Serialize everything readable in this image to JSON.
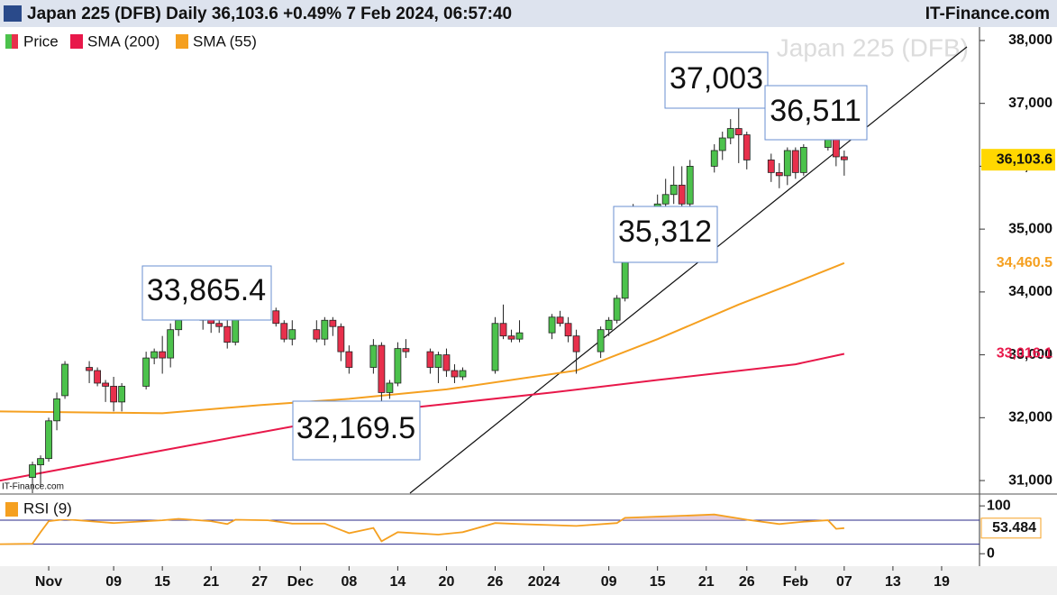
{
  "chart_data": {
    "type": "candlestick",
    "title": "Japan 225 (DFB) Daily 36,103.6 +0.49% 7 Feb 2024, 06:57:40",
    "source": "IT-Finance.com",
    "watermark": "Japan 225 (DFB)",
    "footer_source": "IT-Finance.com",
    "up_color": "#4cc24c",
    "down_color": "#e8304c",
    "legend": [
      "Price",
      "SMA (200)",
      "SMA (55)"
    ],
    "xlim": [
      "2023-10-26",
      "2024-02-23"
    ],
    "xticks": [
      {
        "value": "2023-11-01",
        "label": "Nov"
      },
      {
        "value": "2023-11-09",
        "label": "09"
      },
      {
        "value": "2023-11-15",
        "label": "15"
      },
      {
        "value": "2023-11-21",
        "label": "21"
      },
      {
        "value": "2023-11-27",
        "label": "27"
      },
      {
        "value": "2023-12-02",
        "label": "Dec"
      },
      {
        "value": "2023-12-08",
        "label": "08"
      },
      {
        "value": "2023-12-14",
        "label": "14"
      },
      {
        "value": "2023-12-20",
        "label": "20"
      },
      {
        "value": "2023-12-26",
        "label": "26"
      },
      {
        "value": "2024-01-01",
        "label": "2024"
      },
      {
        "value": "2024-01-09",
        "label": "09"
      },
      {
        "value": "2024-01-15",
        "label": "15"
      },
      {
        "value": "2024-01-21",
        "label": "21"
      },
      {
        "value": "2024-01-26",
        "label": "26"
      },
      {
        "value": "2024-02-01",
        "label": "Feb"
      },
      {
        "value": "2024-02-07",
        "label": "07"
      },
      {
        "value": "2024-02-13",
        "label": "13"
      },
      {
        "value": "2024-02-19",
        "label": "19"
      }
    ],
    "ylim": [
      30800,
      38200
    ],
    "yticks": [
      {
        "value": 31000,
        "label": "31,000"
      },
      {
        "value": 32000,
        "label": "32,000"
      },
      {
        "value": 33000,
        "label": "33,000"
      },
      {
        "value": 34000,
        "label": "34,000"
      },
      {
        "value": 35000,
        "label": "35,000"
      },
      {
        "value": 36000,
        "label": "36,000"
      },
      {
        "value": 37000,
        "label": "37,000"
      },
      {
        "value": 38000,
        "label": "38,000"
      }
    ],
    "candles": [
      [
        "2023-10-30",
        31050,
        31300,
        30800,
        31250
      ],
      [
        "2023-10-31",
        31250,
        31400,
        30900,
        31350
      ],
      [
        "2023-11-01",
        31350,
        32000,
        31300,
        31950
      ],
      [
        "2023-11-02",
        31950,
        32400,
        31800,
        32300
      ],
      [
        "2023-11-03",
        32350,
        32900,
        32300,
        32850
      ],
      [
        "2023-11-06",
        32800,
        32900,
        32550,
        32750
      ],
      [
        "2023-11-07",
        32750,
        32800,
        32500,
        32550
      ],
      [
        "2023-11-08",
        32550,
        32600,
        32250,
        32500
      ],
      [
        "2023-11-09",
        32500,
        32650,
        32100,
        32250
      ],
      [
        "2023-11-10",
        32250,
        32550,
        32100,
        32500
      ],
      [
        "2023-11-13",
        32500,
        33050,
        32450,
        32950
      ],
      [
        "2023-11-14",
        32950,
        33100,
        32850,
        33050
      ],
      [
        "2023-11-15",
        33050,
        33300,
        32700,
        32950
      ],
      [
        "2023-11-16",
        32950,
        33500,
        32800,
        33400
      ],
      [
        "2023-11-17",
        33400,
        33650,
        33300,
        33550
      ],
      [
        "2023-11-20",
        33550,
        33700,
        33400,
        33600
      ],
      [
        "2023-11-21",
        33600,
        33700,
        33350,
        33500
      ],
      [
        "2023-11-22",
        33500,
        33750,
        33350,
        33450
      ],
      [
        "2023-11-23",
        33450,
        33600,
        33100,
        33200
      ],
      [
        "2023-11-24",
        33200,
        33750,
        33150,
        33700
      ],
      [
        "2023-11-27",
        33700,
        33865.4,
        33650,
        33750
      ],
      [
        "2023-11-28",
        33750,
        33800,
        33600,
        33700
      ],
      [
        "2023-11-29",
        33700,
        33750,
        33450,
        33500
      ],
      [
        "2023-11-30",
        33500,
        33550,
        33200,
        33250
      ],
      [
        "2023-12-01",
        33250,
        33550,
        33150,
        33400
      ],
      [
        "2023-12-04",
        33400,
        33550,
        33200,
        33250
      ],
      [
        "2023-12-05",
        33250,
        33600,
        33150,
        33550
      ],
      [
        "2023-12-06",
        33550,
        33600,
        33300,
        33450
      ],
      [
        "2023-12-07",
        33450,
        33500,
        32900,
        33050
      ],
      [
        "2023-12-08",
        33050,
        33150,
        32700,
        32800
      ],
      [
        "2023-12-11",
        32800,
        33250,
        32700,
        33150
      ],
      [
        "2023-12-12",
        33150,
        33200,
        32169.5,
        32400
      ],
      [
        "2023-12-13",
        32400,
        32600,
        32300,
        32550
      ],
      [
        "2023-12-14",
        32550,
        33200,
        32500,
        33100
      ],
      [
        "2023-12-15",
        33100,
        33250,
        32950,
        33050
      ],
      [
        "2023-12-18",
        33050,
        33100,
        32700,
        32800
      ],
      [
        "2023-12-19",
        32800,
        33050,
        32550,
        33000
      ],
      [
        "2023-12-20",
        33000,
        33100,
        32650,
        32750
      ],
      [
        "2023-12-21",
        32750,
        32850,
        32550,
        32650
      ],
      [
        "2023-12-22",
        32650,
        32800,
        32600,
        32750
      ],
      [
        "2023-12-26",
        32750,
        33600,
        32700,
        33500
      ],
      [
        "2023-12-27",
        33500,
        33800,
        33250,
        33300
      ],
      [
        "2023-12-28",
        33300,
        33400,
        33200,
        33250
      ],
      [
        "2023-12-29",
        33250,
        33550,
        33200,
        33350
      ],
      [
        "2024-01-02",
        33350,
        33650,
        33250,
        33600
      ],
      [
        "2024-01-03",
        33600,
        33700,
        33450,
        33500
      ],
      [
        "2024-01-04",
        33500,
        33600,
        33200,
        33300
      ],
      [
        "2024-01-05",
        33300,
        33400,
        32700,
        33050
      ],
      [
        "2024-01-08",
        33050,
        33450,
        32950,
        33400
      ],
      [
        "2024-01-09",
        33400,
        33600,
        33300,
        33550
      ],
      [
        "2024-01-10",
        33550,
        33950,
        33500,
        33900
      ],
      [
        "2024-01-11",
        33900,
        35050,
        33850,
        34950
      ],
      [
        "2024-01-12",
        34950,
        35400,
        34900,
        35300
      ],
      [
        "2024-01-15",
        35300,
        35550,
        35150,
        35400
      ],
      [
        "2024-01-16",
        35400,
        35800,
        35350,
        35550
      ],
      [
        "2024-01-17",
        35550,
        36000,
        35400,
        35700
      ],
      [
        "2024-01-18",
        35700,
        36000,
        35312,
        35400
      ],
      [
        "2024-01-19",
        35400,
        36100,
        35300,
        36000
      ],
      [
        "2024-01-22",
        36000,
        36350,
        35900,
        36250
      ],
      [
        "2024-01-23",
        36250,
        36550,
        36100,
        36450
      ],
      [
        "2024-01-24",
        36450,
        36750,
        36350,
        36600
      ],
      [
        "2024-01-25",
        36600,
        37003,
        36050,
        36500
      ],
      [
        "2024-01-26",
        36500,
        36550,
        35950,
        36100
      ],
      [
        "2024-01-29",
        36100,
        36200,
        35750,
        35900
      ],
      [
        "2024-01-30",
        35900,
        36050,
        35650,
        35850
      ],
      [
        "2024-01-31",
        35850,
        36300,
        35700,
        36250
      ],
      [
        "2024-02-01",
        36250,
        36300,
        35800,
        35900
      ],
      [
        "2024-02-02",
        35900,
        36350,
        35850,
        36300
      ],
      [
        "2024-02-05",
        36300,
        36511,
        36250,
        36450
      ],
      [
        "2024-02-06",
        36450,
        36500,
        36000,
        36150
      ],
      [
        "2024-02-07",
        36150,
        36250,
        35850,
        36103.6
      ]
    ],
    "series": [
      {
        "name": "SMA (200)",
        "color": "#e8184a",
        "x": [
          "2023-10-26",
          "2023-11-15",
          "2023-12-01",
          "2023-12-15",
          "2024-01-02",
          "2024-01-15",
          "2024-02-01",
          "2024-02-07"
        ],
        "values": [
          31000,
          31480,
          31860,
          32150,
          32400,
          32600,
          32850,
          33016.1
        ],
        "last_label": "33,016.1"
      },
      {
        "name": "SMA (55)",
        "color": "#f5a020",
        "x": [
          "2023-10-26",
          "2023-11-15",
          "2023-11-27",
          "2023-12-08",
          "2023-12-20",
          "2024-01-05",
          "2024-01-15",
          "2024-01-25",
          "2024-02-01",
          "2024-02-07"
        ],
        "values": [
          32100,
          32070,
          32200,
          32300,
          32450,
          32750,
          33250,
          33800,
          34150,
          34460.5
        ],
        "last_label": "34,460.5"
      }
    ],
    "last_price_label": "36,103.6",
    "last_price": 36103.6,
    "annotations": [
      {
        "label": "37,003",
        "value": 37003
      },
      {
        "label": "36,511",
        "value": 36511
      },
      {
        "label": "35,312",
        "value": 35312
      },
      {
        "label": "33,865.4",
        "value": 33865.4
      },
      {
        "label": "32,169.5",
        "value": 32169.5
      }
    ],
    "rsi": {
      "name": "RSI (9)",
      "color": "#f5a020",
      "ylim": [
        -26,
        121
      ],
      "yticks": [
        100,
        0
      ],
      "levels": [
        70,
        20
      ],
      "x": [
        "2023-10-26",
        "2023-10-30",
        "2023-10-31",
        "2023-11-01",
        "2023-11-03",
        "2023-11-09",
        "2023-11-15",
        "2023-11-17",
        "2023-11-21",
        "2023-11-23",
        "2023-11-24",
        "2023-11-28",
        "2023-12-01",
        "2023-12-05",
        "2023-12-08",
        "2023-12-11",
        "2023-12-12",
        "2023-12-14",
        "2023-12-19",
        "2023-12-22",
        "2023-12-26",
        "2023-12-29",
        "2024-01-05",
        "2024-01-10",
        "2024-01-11",
        "2024-01-19",
        "2024-01-22",
        "2024-01-26",
        "2024-01-30",
        "2024-02-02",
        "2024-02-05",
        "2024-02-06",
        "2024-02-07"
      ],
      "values": [
        20,
        21,
        45,
        68,
        72,
        64,
        70,
        73,
        68,
        62,
        71,
        70,
        63,
        63,
        43,
        54,
        26,
        45,
        40,
        45,
        64,
        62,
        58,
        64,
        75,
        80,
        82,
        71,
        62,
        67,
        70,
        52,
        53.484
      ],
      "last_label": "53.484"
    }
  }
}
